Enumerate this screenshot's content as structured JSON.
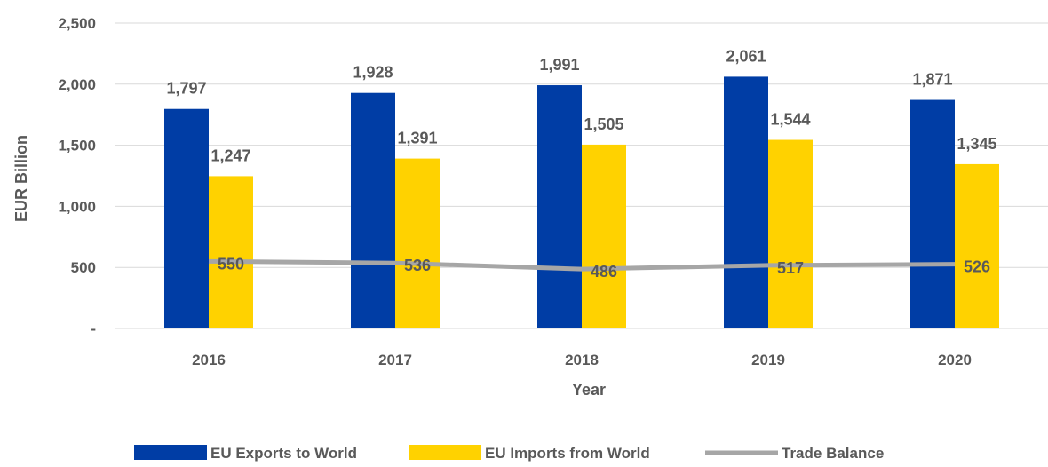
{
  "chart_data": {
    "type": "bar",
    "title": "",
    "xlabel": "Year",
    "ylabel": "EUR Billion",
    "categories": [
      "2016",
      "2017",
      "2018",
      "2019",
      "2020"
    ],
    "ylim": [
      0,
      2500
    ],
    "y_ticks": [
      0,
      500,
      1000,
      1500,
      2000,
      2500
    ],
    "y_tick_labels": [
      "-",
      "500",
      "1,000",
      "1,500",
      "2,000",
      "2,500"
    ],
    "grid": true,
    "legend_position": "bottom",
    "series": [
      {
        "name": "EU Exports to World",
        "kind": "bar",
        "color": "#003DA5",
        "values": [
          1797,
          1928,
          1991,
          2061,
          1871
        ],
        "labels": [
          "1,797",
          "1,928",
          "1,991",
          "2,061",
          "1,871"
        ]
      },
      {
        "name": "EU Imports from World",
        "kind": "bar",
        "color": "#FFD200",
        "values": [
          1247,
          1391,
          1505,
          1544,
          1345
        ],
        "labels": [
          "1,247",
          "1,391",
          "1,505",
          "1,544",
          "1,345"
        ]
      },
      {
        "name": "Trade Balance",
        "kind": "line",
        "color": "#A6A6A6",
        "values": [
          550,
          536,
          486,
          517,
          526
        ],
        "labels": [
          "550",
          "536",
          "486",
          "517",
          "526"
        ]
      }
    ]
  }
}
